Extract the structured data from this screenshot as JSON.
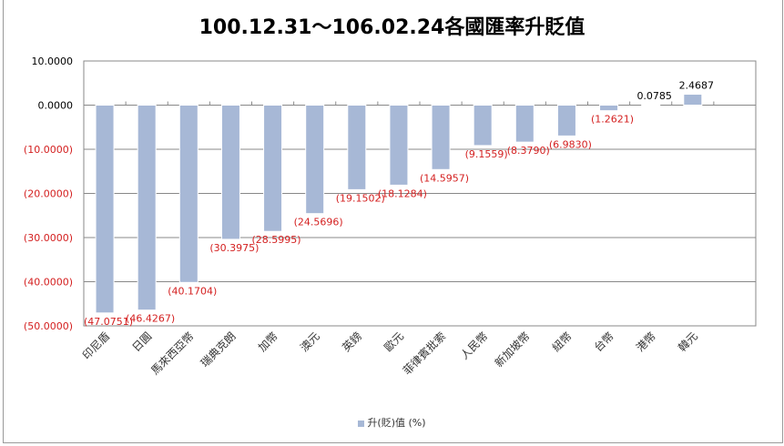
{
  "chart_data": {
    "type": "bar",
    "title": "100.12.31～106.02.24各國匯率升貶值",
    "categories": [
      "印尼盾",
      "日圓",
      "馬來西亞幣",
      "瑞典克朗",
      "加幣",
      "澳元",
      "英鎊",
      "歐元",
      "菲律賓批索",
      "人民幣",
      "新加坡幣",
      "紐幣",
      "台幣",
      "港幣",
      "韓元"
    ],
    "series": [
      {
        "name": "升(貶)值 (%)",
        "values": [
          -47.0751,
          -46.4267,
          -40.1704,
          -30.3975,
          -28.5995,
          -24.5696,
          -19.1502,
          -18.1284,
          -14.5957,
          -9.1559,
          -8.379,
          -6.983,
          -1.2621,
          0.0785,
          2.4687
        ]
      }
    ],
    "data_labels": [
      "(47.0751)",
      "(46.4267)",
      "(40.1704)",
      "(30.3975)",
      "(28.5995)",
      "(24.5696)",
      "(19.1502)",
      "(18.1284)",
      "(14.5957)",
      "(9.1559)",
      "(8.3790)",
      "(6.9830)",
      "(1.2621)",
      "0.0785",
      "2.4687"
    ],
    "yticks": [
      10,
      0,
      -10,
      -20,
      -30,
      -40,
      -50
    ],
    "ytick_labels": [
      "10.0000",
      "0.0000",
      "(10.0000)",
      "(20.0000)",
      "(30.0000)",
      "(40.0000)",
      "(50.0000)"
    ],
    "ylim": [
      -50,
      10
    ],
    "xlabel": "",
    "ylabel": "",
    "grid": true,
    "legend": "bottom",
    "colors": {
      "bar": "#a7b8d6",
      "negative_label": "#d42020",
      "positive_label": "#000000"
    }
  }
}
